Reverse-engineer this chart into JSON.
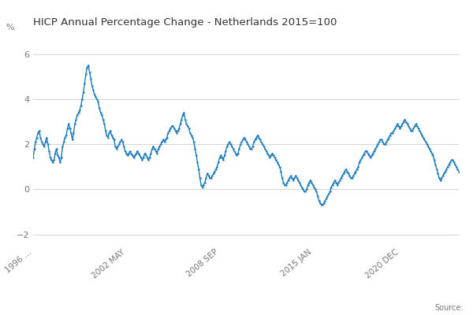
{
  "title": "HICP Annual Percentage Change - Netherlands 2015=100",
  "ylabel": "%",
  "legend_label": "HICP Annual Percentage Change - Netherlands 2015=100",
  "line_color": "#1a7abf",
  "line_width": 1.0,
  "marker": ".",
  "marker_size": 1.5,
  "ylim": [
    -2.5,
    7.0
  ],
  "yticks": [
    -2,
    0,
    2,
    4,
    6
  ],
  "xtick_labels": [
    "1996 ...",
    "2002 MAY",
    "2008 SEP",
    "2015 JAN",
    "2020 DEC"
  ],
  "background_color": "#ffffff",
  "grid_color": "#d0d0d0",
  "source_text": "Source:",
  "font_color": "#777777",
  "title_color": "#333333",
  "values": [
    1.4,
    1.8,
    2.1,
    2.3,
    2.5,
    2.6,
    2.3,
    2.1,
    2.0,
    1.9,
    2.1,
    2.3,
    2.0,
    1.7,
    1.4,
    1.3,
    1.2,
    1.3,
    1.6,
    1.8,
    1.5,
    1.4,
    1.2,
    1.4,
    1.9,
    2.1,
    2.3,
    2.4,
    2.7,
    2.9,
    2.7,
    2.5,
    2.2,
    2.5,
    2.9,
    3.1,
    3.3,
    3.4,
    3.5,
    3.7,
    4.0,
    4.3,
    4.7,
    5.1,
    5.4,
    5.5,
    5.2,
    4.9,
    4.6,
    4.4,
    4.2,
    4.1,
    4.0,
    3.9,
    3.6,
    3.4,
    3.3,
    3.1,
    2.9,
    2.6,
    2.4,
    2.3,
    2.5,
    2.6,
    2.4,
    2.3,
    2.2,
    1.9,
    1.8,
    1.9,
    2.0,
    2.1,
    2.2,
    2.1,
    1.9,
    1.7,
    1.6,
    1.5,
    1.6,
    1.7,
    1.6,
    1.5,
    1.4,
    1.5,
    1.6,
    1.7,
    1.6,
    1.5,
    1.4,
    1.3,
    1.4,
    1.6,
    1.5,
    1.4,
    1.3,
    1.4,
    1.6,
    1.8,
    1.9,
    1.8,
    1.7,
    1.6,
    1.8,
    1.9,
    2.0,
    2.1,
    2.2,
    2.1,
    2.2,
    2.3,
    2.5,
    2.6,
    2.7,
    2.8,
    2.8,
    2.7,
    2.6,
    2.5,
    2.6,
    2.7,
    2.9,
    3.1,
    3.3,
    3.4,
    3.1,
    2.9,
    2.8,
    2.7,
    2.5,
    2.4,
    2.3,
    2.1,
    1.8,
    1.5,
    1.2,
    0.9,
    0.5,
    0.2,
    0.1,
    0.2,
    0.3,
    0.5,
    0.7,
    0.6,
    0.5,
    0.5,
    0.6,
    0.7,
    0.8,
    0.9,
    1.0,
    1.2,
    1.4,
    1.5,
    1.4,
    1.3,
    1.5,
    1.7,
    1.9,
    2.0,
    2.1,
    2.0,
    1.9,
    1.8,
    1.7,
    1.6,
    1.5,
    1.6,
    1.8,
    2.0,
    2.1,
    2.2,
    2.3,
    2.2,
    2.1,
    2.0,
    1.9,
    1.8,
    1.8,
    1.9,
    2.1,
    2.2,
    2.3,
    2.4,
    2.3,
    2.2,
    2.1,
    2.0,
    1.9,
    1.8,
    1.7,
    1.6,
    1.5,
    1.4,
    1.5,
    1.6,
    1.5,
    1.4,
    1.3,
    1.2,
    1.1,
    1.0,
    0.8,
    0.5,
    0.3,
    0.2,
    0.2,
    0.3,
    0.4,
    0.5,
    0.6,
    0.5,
    0.4,
    0.5,
    0.6,
    0.5,
    0.4,
    0.3,
    0.2,
    0.1,
    0.0,
    -0.1,
    -0.1,
    0.0,
    0.2,
    0.3,
    0.4,
    0.3,
    0.2,
    0.1,
    0.0,
    -0.1,
    -0.3,
    -0.5,
    -0.6,
    -0.7,
    -0.7,
    -0.6,
    -0.5,
    -0.4,
    -0.3,
    -0.2,
    -0.1,
    0.1,
    0.2,
    0.3,
    0.4,
    0.3,
    0.2,
    0.3,
    0.4,
    0.5,
    0.6,
    0.7,
    0.8,
    0.9,
    0.8,
    0.7,
    0.6,
    0.5,
    0.5,
    0.6,
    0.7,
    0.8,
    0.9,
    1.0,
    1.2,
    1.3,
    1.4,
    1.5,
    1.6,
    1.7,
    1.7,
    1.6,
    1.5,
    1.4,
    1.5,
    1.6,
    1.7,
    1.8,
    1.9,
    2.0,
    2.1,
    2.2,
    2.2,
    2.1,
    2.0,
    2.0,
    2.1,
    2.2,
    2.3,
    2.4,
    2.5,
    2.5,
    2.6,
    2.7,
    2.8,
    2.9,
    2.8,
    2.7,
    2.8,
    2.9,
    3.0,
    3.1,
    3.0,
    2.9,
    2.8,
    2.7,
    2.6,
    2.6,
    2.7,
    2.8,
    2.9,
    2.8,
    2.7,
    2.6,
    2.5,
    2.4,
    2.3,
    2.2,
    2.1,
    2.0,
    1.9,
    1.8,
    1.7,
    1.6,
    1.5,
    1.3,
    1.1,
    0.9,
    0.7,
    0.5,
    0.4,
    0.5,
    0.6,
    0.7,
    0.8,
    0.9,
    1.0,
    1.1,
    1.2,
    1.3,
    1.3,
    1.2,
    1.1,
    1.0,
    0.9,
    0.8
  ],
  "start_year": 1996,
  "start_month": 1
}
